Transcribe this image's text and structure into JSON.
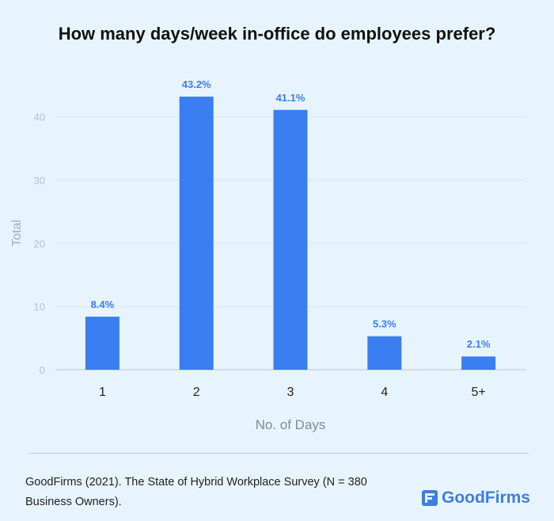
{
  "title": "How many days/week in-office do employees prefer?",
  "chart_data": {
    "type": "bar",
    "title": "How many days/week in-office do employees prefer?",
    "xlabel": "No. of Days",
    "ylabel": "Total",
    "categories": [
      "1",
      "2",
      "3",
      "4",
      "5+"
    ],
    "values": [
      8.4,
      43.2,
      41.1,
      5.3,
      2.1
    ],
    "value_labels": [
      "8.4%",
      "43.2%",
      "41.1%",
      "5.3%",
      "2.1%"
    ],
    "yticks": [
      0,
      10,
      20,
      30,
      40
    ],
    "ylim": [
      0,
      43.2
    ],
    "grid": true,
    "bar_color": "#3a7ef2",
    "label_color": "#3a7ef2"
  },
  "footer": {
    "source": "GoodFirms (2021). The State of Hybrid Workplace Survey (N = 380 Business Owners).",
    "brand": "GoodFirms",
    "brand_color": "#3d7ee0"
  }
}
